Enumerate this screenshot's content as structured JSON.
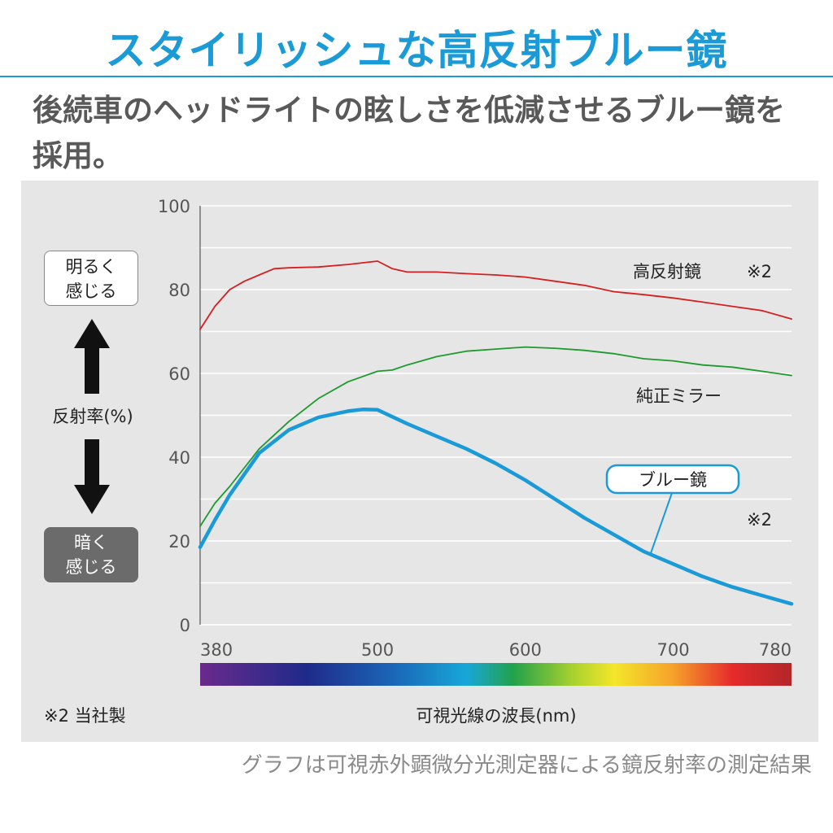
{
  "headline": "スタイリッシュな高反射ブルー鏡",
  "lead_text": "後続車のヘッドライトの眩しさを低減させるブルー鏡を採用。",
  "side": {
    "bright_label": "明るく\n感じる",
    "dark_label": "暗く\n感じる",
    "axis_name": "反射率(%)"
  },
  "footnote": "※2 当社製",
  "caption": "グラフは可視赤外顕微分光測定器による鏡反射率の測定結果",
  "colors": {
    "accent": "#1a9ad7",
    "high_reflect": "#d42020",
    "oem_mirror": "#1e9a2e",
    "blue_mirror": "#1a9ad7",
    "panel": "#e6e6e6"
  },
  "chart_data": {
    "type": "line",
    "xlabel": "可視光線の波長(nm)",
    "ylabel": "反射率(%)",
    "xlim": [
      380,
      780
    ],
    "ylim": [
      0,
      100
    ],
    "x_ticks": [
      380,
      500,
      600,
      700,
      780
    ],
    "y_ticks": [
      0,
      20,
      40,
      60,
      80,
      100
    ],
    "grid": true,
    "spectrum_bar": true,
    "series": [
      {
        "name": "高反射鏡",
        "note": "※2",
        "color": "#d42020",
        "x": [
          380,
          390,
          400,
          410,
          420,
          430,
          440,
          460,
          480,
          500,
          510,
          520,
          540,
          560,
          580,
          600,
          620,
          640,
          660,
          680,
          700,
          720,
          740,
          760,
          780
        ],
        "y": [
          70.5,
          76,
          80,
          82,
          83.5,
          85,
          85.2,
          85.4,
          86,
          86.8,
          85,
          84.2,
          84.2,
          83.8,
          83.5,
          83,
          82,
          81,
          79.5,
          78.8,
          78,
          77,
          76,
          75,
          73
        ]
      },
      {
        "name": "純正ミラー",
        "color": "#1e9a2e",
        "x": [
          380,
          390,
          400,
          420,
          440,
          460,
          480,
          500,
          510,
          520,
          540,
          560,
          580,
          600,
          620,
          640,
          660,
          680,
          700,
          720,
          740,
          760,
          780
        ],
        "y": [
          23.5,
          29,
          33,
          42,
          48.5,
          54,
          58,
          60.5,
          60.8,
          62,
          64,
          65.3,
          65.8,
          66.3,
          66,
          65.5,
          64.7,
          63.5,
          63,
          62,
          61.5,
          60.5,
          59.5
        ]
      },
      {
        "name": "ブルー鏡",
        "note": "※2",
        "color": "#1a9ad7",
        "x": [
          380,
          390,
          400,
          420,
          440,
          460,
          480,
          490,
          500,
          520,
          540,
          560,
          580,
          600,
          620,
          640,
          660,
          680,
          700,
          720,
          740,
          760,
          780
        ],
        "y": [
          18.5,
          25,
          31,
          41,
          46.5,
          49.5,
          51,
          51.4,
          51.3,
          48,
          45,
          42,
          38.5,
          34.5,
          30,
          25.5,
          21.5,
          17.5,
          14.5,
          11.5,
          9,
          7,
          5
        ]
      }
    ]
  }
}
